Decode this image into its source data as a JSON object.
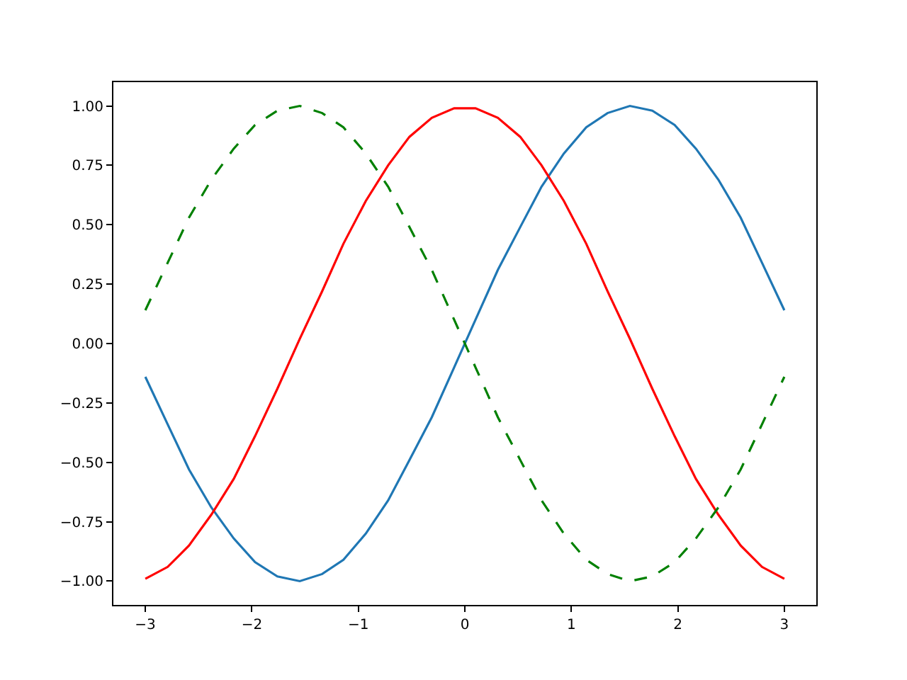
{
  "chart_data": {
    "type": "line",
    "x": [
      -3,
      -2.79,
      -2.59,
      -2.38,
      -2.17,
      -1.97,
      -1.76,
      -1.55,
      -1.34,
      -1.14,
      -0.93,
      -0.72,
      -0.52,
      -0.31,
      -0.1,
      0.1,
      0.31,
      0.52,
      0.72,
      0.93,
      1.14,
      1.34,
      1.55,
      1.76,
      1.97,
      2.17,
      2.38,
      2.59,
      2.79,
      3
    ],
    "series": [
      {
        "color": "#1f77b4",
        "line_style": "solid",
        "values": [
          -0.14,
          -0.34,
          -0.53,
          -0.69,
          -0.82,
          -0.92,
          -0.98,
          -1.0,
          -0.97,
          -0.91,
          -0.8,
          -0.66,
          -0.49,
          -0.31,
          -0.1,
          0.1,
          0.31,
          0.49,
          0.66,
          0.8,
          0.91,
          0.97,
          1.0,
          0.98,
          0.92,
          0.82,
          0.69,
          0.53,
          0.34,
          0.14
        ]
      },
      {
        "color": "#ff0000",
        "line_style": "solid",
        "values": [
          -0.99,
          -0.94,
          -0.85,
          -0.72,
          -0.57,
          -0.39,
          -0.19,
          0.02,
          0.22,
          0.42,
          0.6,
          0.75,
          0.87,
          0.95,
          0.99,
          0.99,
          0.95,
          0.87,
          0.75,
          0.6,
          0.42,
          0.22,
          0.02,
          -0.19,
          -0.39,
          -0.57,
          -0.72,
          -0.85,
          -0.94,
          -0.99
        ]
      },
      {
        "color": "#008000",
        "line_style": "dashed",
        "values": [
          0.14,
          0.34,
          0.53,
          0.69,
          0.82,
          0.92,
          0.98,
          1.0,
          0.97,
          0.91,
          0.8,
          0.66,
          0.49,
          0.31,
          0.1,
          -0.1,
          -0.31,
          -0.49,
          -0.66,
          -0.8,
          -0.91,
          -0.97,
          -1.0,
          -0.98,
          -0.92,
          -0.82,
          -0.69,
          -0.53,
          -0.34,
          -0.14
        ]
      }
    ],
    "xlim": [
      -3.3,
      3.3
    ],
    "xticks": [
      -3,
      -2,
      -1,
      0,
      1,
      2,
      3
    ],
    "ylim": [
      -1.1,
      1.1
    ],
    "yticks": [
      {
        "value": -1,
        "label": "−1.00"
      },
      {
        "value": -0.75,
        "label": "−0.75"
      },
      {
        "value": -0.5,
        "label": "−0.50"
      },
      {
        "value": -0.25,
        "label": "−0.25"
      },
      {
        "value": 0,
        "label": "0.00"
      },
      {
        "value": 0.25,
        "label": "0.25"
      },
      {
        "value": 0.5,
        "label": "0.50"
      },
      {
        "value": 0.75,
        "label": "0.75"
      },
      {
        "value": 1,
        "label": "1.00"
      }
    ],
    "marker": "none"
  }
}
